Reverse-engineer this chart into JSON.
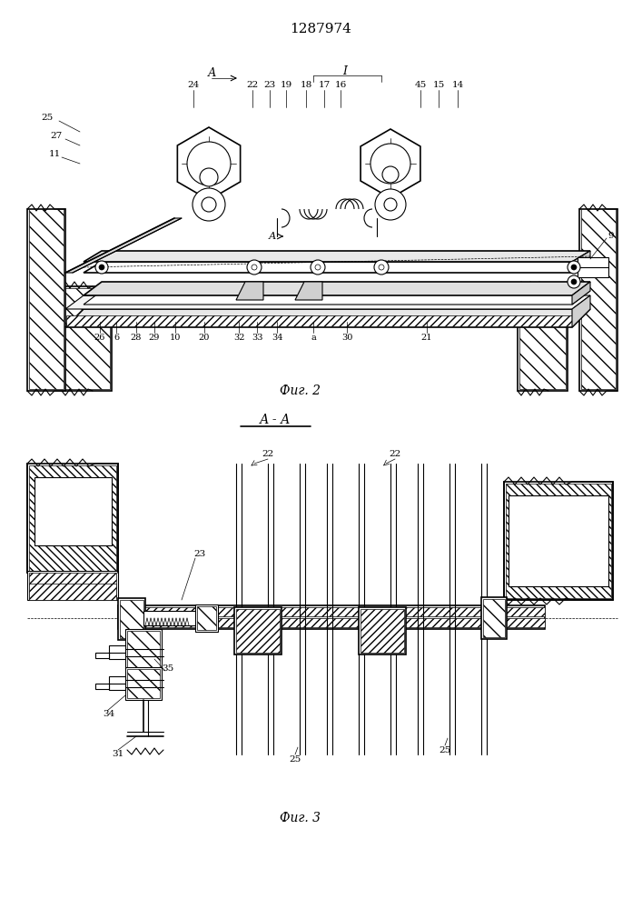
{
  "title_number": "1287974",
  "fig2_label": "Фиг. 2",
  "fig3_label": "Фиг. 3",
  "section_label": "А - А",
  "bg": "#ffffff"
}
